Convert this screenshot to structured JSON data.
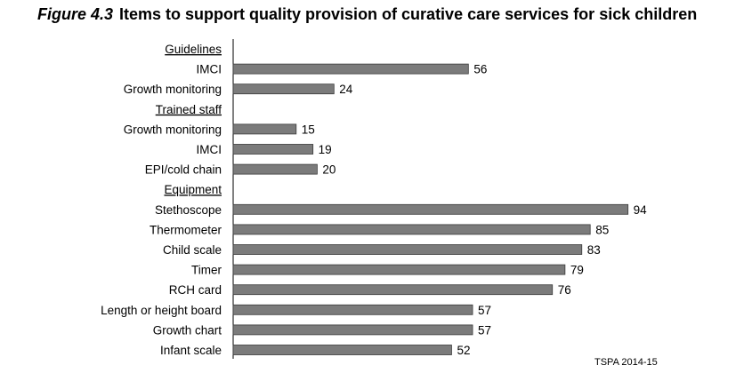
{
  "figure": {
    "number": "Figure 4.3",
    "title": "Items to support quality provision of curative care services for sick children",
    "source": "TSPA 2014-15"
  },
  "colors": {
    "bar": "#7b7b7b",
    "bar_border": "#3a3a3a",
    "text": "#000000"
  },
  "chart_data": {
    "type": "bar",
    "orientation": "horizontal",
    "title": "Items to support quality provision of curative care services for sick children",
    "xlabel": "",
    "ylabel": "",
    "xlim": [
      0,
      100
    ],
    "grid": false,
    "rows": [
      {
        "kind": "header",
        "label": "Guidelines"
      },
      {
        "kind": "bar",
        "label": "IMCI",
        "value": 56
      },
      {
        "kind": "bar",
        "label": "Growth monitoring",
        "value": 24
      },
      {
        "kind": "header",
        "label": "Trained staff"
      },
      {
        "kind": "bar",
        "label": "Growth monitoring",
        "value": 15
      },
      {
        "kind": "bar",
        "label": "IMCI",
        "value": 19
      },
      {
        "kind": "bar",
        "label": "EPI/cold chain",
        "value": 20
      },
      {
        "kind": "header",
        "label": "Equipment"
      },
      {
        "kind": "bar",
        "label": "Stethoscope",
        "value": 94
      },
      {
        "kind": "bar",
        "label": "Thermometer",
        "value": 85
      },
      {
        "kind": "bar",
        "label": "Child scale",
        "value": 83
      },
      {
        "kind": "bar",
        "label": "Timer",
        "value": 79
      },
      {
        "kind": "bar",
        "label": "RCH card",
        "value": 76
      },
      {
        "kind": "bar",
        "label": "Length or height board",
        "value": 57
      },
      {
        "kind": "bar",
        "label": "Growth chart",
        "value": 57
      },
      {
        "kind": "bar",
        "label": "Infant scale",
        "value": 52
      }
    ]
  }
}
